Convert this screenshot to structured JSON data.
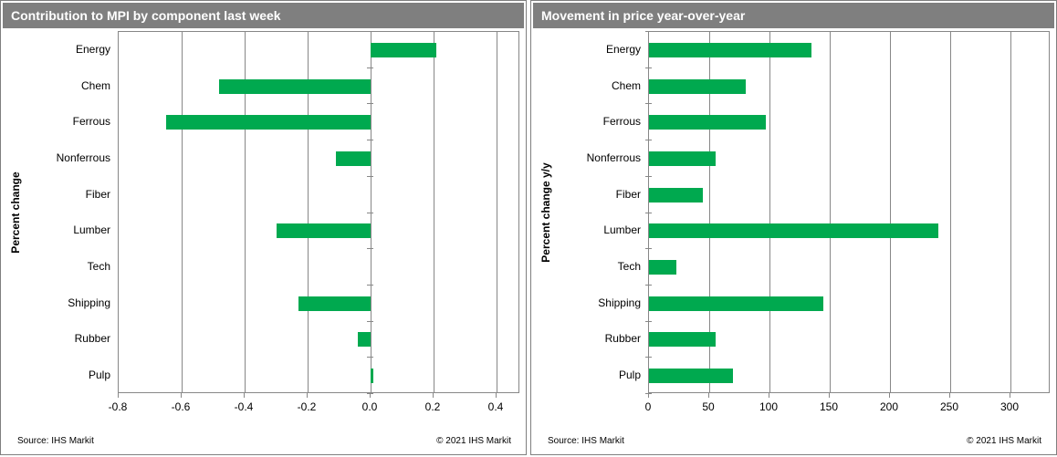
{
  "colors": {
    "bar": "#00A94F",
    "title_bg": "#7F7F7F",
    "title_text": "#FFFFFF",
    "grid": "#878787",
    "panel_border": "#7F7F7F",
    "axis_text": "#000000"
  },
  "footer": {
    "source": "Source:  IHS Markit",
    "copyright": "© 2021  IHS Markit"
  },
  "chart_data": [
    {
      "type": "bar",
      "orientation": "horizontal",
      "title": "Contribution to MPI by component last week",
      "ylabel": "Percent change",
      "xlabel": "",
      "categories": [
        "Energy",
        "Chem",
        "Ferrous",
        "Nonferrous",
        "Fiber",
        "Lumber",
        "Tech",
        "Shipping",
        "Rubber",
        "Pulp"
      ],
      "values": [
        0.21,
        -0.48,
        -0.65,
        -0.11,
        0,
        -0.3,
        0,
        -0.23,
        -0.04,
        0.01
      ],
      "xticks": [
        -0.8,
        -0.6,
        -0.4,
        -0.2,
        0.0,
        0.2,
        0.4
      ],
      "xtick_labels": [
        "-0.8",
        "-0.6",
        "-0.4",
        "-0.2",
        "0.0",
        "0.2",
        "0.4"
      ],
      "xlim": [
        -0.8,
        0.4
      ],
      "grid": true,
      "legend": false
    },
    {
      "type": "bar",
      "orientation": "horizontal",
      "title": "Movement in price year-over-year",
      "ylabel": "Percent change y/y",
      "xlabel": "",
      "categories": [
        "Energy",
        "Chem",
        "Ferrous",
        "Nonferrous",
        "Fiber",
        "Lumber",
        "Tech",
        "Shipping",
        "Rubber",
        "Pulp"
      ],
      "values": [
        135,
        80,
        97,
        55,
        45,
        240,
        23,
        145,
        55,
        70
      ],
      "xticks": [
        0,
        50,
        100,
        150,
        200,
        250,
        300
      ],
      "xtick_labels": [
        "0",
        "50",
        "100",
        "150",
        "200",
        "250",
        "300"
      ],
      "xlim": [
        0,
        300
      ],
      "grid": true,
      "legend": false
    }
  ]
}
